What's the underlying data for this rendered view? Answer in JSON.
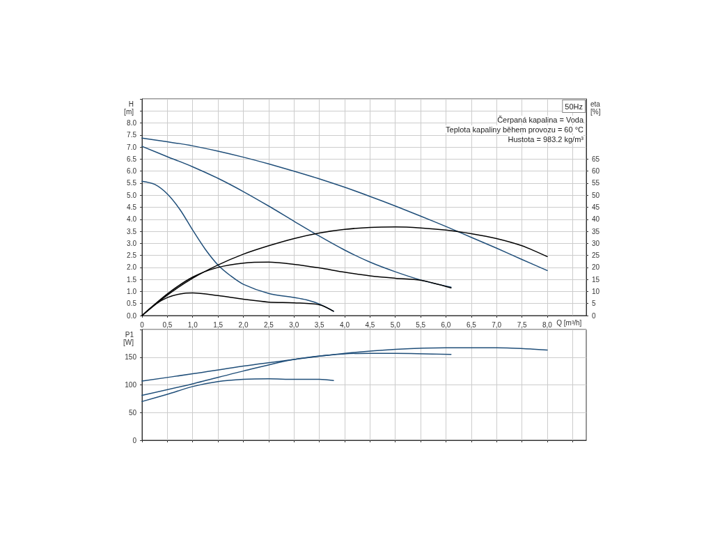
{
  "chart_data": [
    {
      "type": "line",
      "title": "50Hz",
      "xlabel": "Q [m³/h]",
      "ylabel": "H\n[m]",
      "y2label": "eta\n[%]",
      "annotations": [
        "Čerpaná kapalina = Voda",
        "Teplota kapaliny během provozu = 60 °C",
        "Hustota = 983.2 kg/m³"
      ],
      "xlim": [
        0,
        8.77
      ],
      "xticks": [
        {
          "value": 0,
          "label": "0"
        },
        {
          "value": 0.5,
          "label": "0,5"
        },
        {
          "value": 1,
          "label": "1,0"
        },
        {
          "value": 1.5,
          "label": "1,5"
        },
        {
          "value": 2,
          "label": "2,0"
        },
        {
          "value": 2.5,
          "label": "2,5"
        },
        {
          "value": 3,
          "label": "3,0"
        },
        {
          "value": 3.5,
          "label": "3,5"
        },
        {
          "value": 4,
          "label": "4,0"
        },
        {
          "value": 4.5,
          "label": "4,5"
        },
        {
          "value": 5,
          "label": "5,0"
        },
        {
          "value": 5.5,
          "label": "5,5"
        },
        {
          "value": 6,
          "label": "6,0"
        },
        {
          "value": 6.5,
          "label": "6,5"
        },
        {
          "value": 7,
          "label": "7,0"
        },
        {
          "value": 7.5,
          "label": "7,5"
        },
        {
          "value": 8,
          "label": "8,0"
        },
        {
          "value": 8.5,
          "label": null
        }
      ],
      "ylim": [
        0,
        9
      ],
      "yticks": [
        {
          "value": 0,
          "label": "0.0"
        },
        {
          "value": 0.5,
          "label": "0.5"
        },
        {
          "value": 1,
          "label": "1.0"
        },
        {
          "value": 1.5,
          "label": "1.5"
        },
        {
          "value": 2,
          "label": "2.0"
        },
        {
          "value": 2.5,
          "label": "2.5"
        },
        {
          "value": 3,
          "label": "3.0"
        },
        {
          "value": 3.5,
          "label": "3.5"
        },
        {
          "value": 4,
          "label": "4.0"
        },
        {
          "value": 4.5,
          "label": "4.5"
        },
        {
          "value": 5,
          "label": "5.0"
        },
        {
          "value": 5.5,
          "label": "5.5"
        },
        {
          "value": 6,
          "label": "6.0"
        },
        {
          "value": 6.5,
          "label": "6.5"
        },
        {
          "value": 7,
          "label": "7.0"
        },
        {
          "value": 7.5,
          "label": "7.5"
        },
        {
          "value": 8,
          "label": "8.0"
        },
        {
          "value": 8.5,
          "label": null
        }
      ],
      "y2lim": [
        0,
        90
      ],
      "y2ticks": [
        0,
        5,
        10,
        15,
        20,
        25,
        30,
        35,
        40,
        45,
        50,
        55,
        60,
        65
      ],
      "grid": true,
      "marker": "none",
      "line_style": "solid",
      "series": [
        {
          "color": "#1f4e79",
          "x": [
            0,
            0.5,
            1,
            1.5,
            2,
            2.5,
            3,
            3.5,
            4,
            4.5,
            5,
            5.5,
            6,
            6.5,
            7,
            7.5,
            8
          ],
          "values": [
            7.37,
            7.22,
            7.05,
            6.83,
            6.58,
            6.3,
            6.0,
            5.68,
            5.33,
            4.95,
            4.55,
            4.13,
            3.7,
            3.25,
            2.8,
            2.33,
            1.87
          ]
        },
        {
          "color": "#1f4e79",
          "x": [
            0,
            0.5,
            1,
            1.5,
            2,
            2.5,
            3,
            3.5,
            4,
            4.5,
            5,
            5.5,
            6.1
          ],
          "values": [
            7.03,
            6.6,
            6.18,
            5.7,
            5.15,
            4.55,
            3.92,
            3.3,
            2.72,
            2.22,
            1.82,
            1.48,
            1.18
          ]
        },
        {
          "color": "#1f4e79",
          "x": [
            0,
            0.25,
            0.5,
            0.75,
            1,
            1.25,
            1.5,
            1.75,
            2,
            2.5,
            3,
            3.25,
            3.5,
            3.78
          ],
          "values": [
            5.58,
            5.45,
            5.05,
            4.4,
            3.55,
            2.75,
            2.1,
            1.65,
            1.3,
            0.92,
            0.75,
            0.65,
            0.48,
            0.18
          ]
        },
        {
          "color": "#000000",
          "axis": "y2",
          "x": [
            0,
            0.5,
            1,
            1.5,
            2,
            2.5,
            3,
            3.5,
            4,
            4.5,
            5,
            5.5,
            6,
            6.5,
            7,
            7.5,
            8
          ],
          "values": [
            0,
            8.5,
            15.5,
            21,
            25.5,
            29,
            32,
            34.3,
            35.8,
            36.6,
            36.8,
            36.4,
            35.5,
            34,
            32,
            29,
            24.5
          ]
        },
        {
          "color": "#000000",
          "axis": "y2",
          "x": [
            0,
            0.5,
            1,
            1.5,
            2,
            2.5,
            3,
            3.5,
            4,
            4.5,
            5,
            5.5,
            6.1
          ],
          "values": [
            0,
            9,
            16,
            20,
            21.8,
            22.2,
            21.3,
            19.8,
            18,
            16.5,
            15.5,
            14.7,
            11.5
          ]
        },
        {
          "color": "#000000",
          "axis": "y2",
          "x": [
            0,
            0.25,
            0.5,
            0.75,
            1,
            1.5,
            2,
            2.5,
            3,
            3.5,
            3.78
          ],
          "values": [
            0,
            4.5,
            7.5,
            9,
            9.4,
            8.3,
            6.8,
            5.6,
            5.3,
            4.5,
            1.8
          ]
        }
      ]
    },
    {
      "type": "line",
      "ylabel": "P1\n[W]",
      "xlim": [
        0,
        8.77
      ],
      "xticks": [
        {
          "value": 0,
          "label": null
        },
        {
          "value": 0.5,
          "label": null
        },
        {
          "value": 1,
          "label": null
        },
        {
          "value": 1.5,
          "label": null
        },
        {
          "value": 2,
          "label": null
        },
        {
          "value": 2.5,
          "label": null
        },
        {
          "value": 3,
          "label": null
        },
        {
          "value": 3.5,
          "label": null
        },
        {
          "value": 4,
          "label": null
        },
        {
          "value": 4.5,
          "label": null
        },
        {
          "value": 5,
          "label": null
        },
        {
          "value": 5.5,
          "label": null
        },
        {
          "value": 6,
          "label": null
        },
        {
          "value": 6.5,
          "label": null
        },
        {
          "value": 7,
          "label": null
        },
        {
          "value": 7.5,
          "label": null
        },
        {
          "value": 8,
          "label": null
        },
        {
          "value": 8.5,
          "label": null
        }
      ],
      "ylim": [
        0,
        200
      ],
      "yticks": [
        0,
        50,
        100,
        150
      ],
      "tick_labels": "y",
      "grid": true,
      "marker": "none",
      "line_style": "solid",
      "series": [
        {
          "color": "#1f4e79",
          "x": [
            0,
            1,
            2,
            3,
            4,
            5,
            6,
            7,
            8
          ],
          "values": [
            107,
            120,
            134,
            146,
            157,
            164,
            167,
            167,
            163
          ]
        },
        {
          "color": "#1f4e79",
          "x": [
            0,
            1,
            2,
            3,
            4,
            4.5,
            5,
            6.1
          ],
          "values": [
            81,
            102,
            125,
            146,
            156,
            157,
            157,
            155
          ]
        },
        {
          "color": "#1f4e79",
          "x": [
            0,
            0.5,
            1,
            1.5,
            2,
            2.5,
            3,
            3.5,
            3.78
          ],
          "values": [
            70,
            83,
            97,
            106,
            110,
            111,
            110,
            110,
            108
          ]
        }
      ]
    }
  ]
}
